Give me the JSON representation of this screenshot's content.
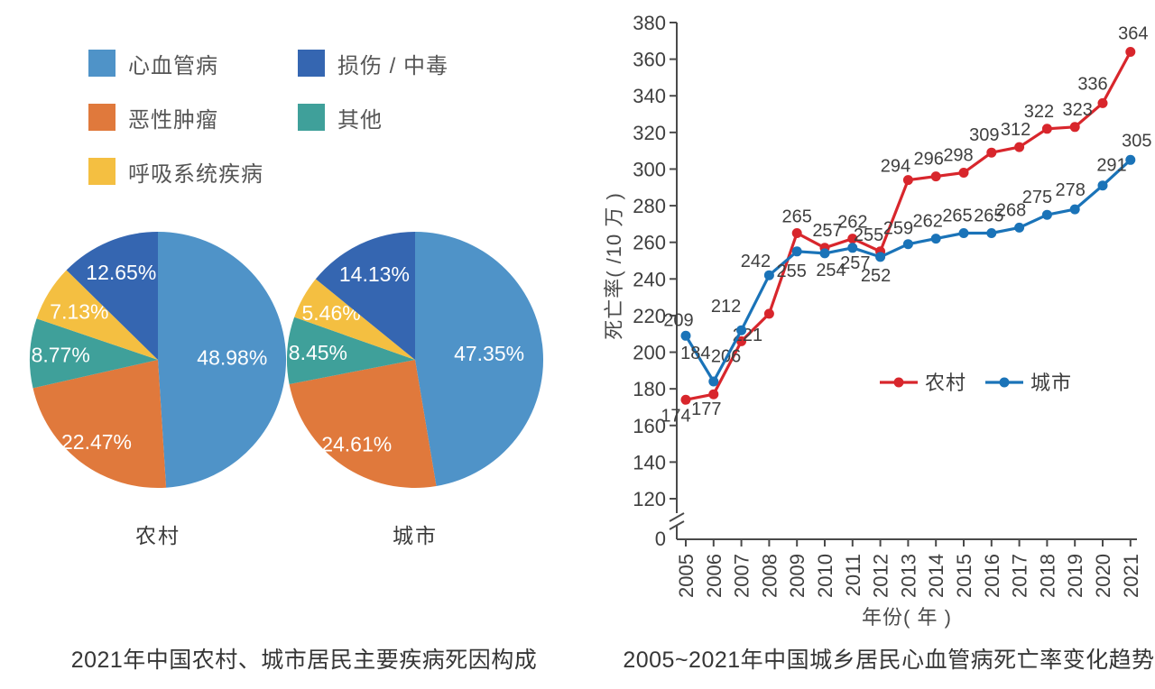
{
  "chart_data": [
    {
      "type": "pie",
      "title": "2021年中国农村、城市居民主要疾病死因构成",
      "categories": [
        {
          "name": "心血管病",
          "color": "#4f93c8"
        },
        {
          "name": "恶性肿瘤",
          "color": "#e0793c"
        },
        {
          "name": "其他",
          "color": "#3fa09a"
        },
        {
          "name": "呼吸系统疾病",
          "color": "#f4bf41"
        },
        {
          "name": "损伤 / 中毒",
          "color": "#3566b1"
        }
      ],
      "legend_columns": [
        [
          "心血管病",
          "恶性肿瘤",
          "呼吸系统疾病"
        ],
        [
          "损伤 / 中毒",
          "其他"
        ]
      ],
      "pies": [
        {
          "label": "农村",
          "values": [
            48.98,
            22.47,
            8.77,
            7.13,
            12.65
          ],
          "pct_labels": [
            "48.98%",
            "22.47%",
            "8.77%",
            "7.13%",
            "12.65%"
          ],
          "label_radius": [
            0.58,
            0.8,
            0.76,
            0.72,
            0.74
          ]
        },
        {
          "label": "城市",
          "values": [
            47.35,
            24.61,
            8.45,
            5.46,
            14.13
          ],
          "pct_labels": [
            "47.35%",
            "24.61%",
            "8.45%",
            "5.46%",
            "14.13%"
          ],
          "label_radius": [
            0.58,
            0.8,
            0.76,
            0.75,
            0.74
          ]
        }
      ]
    },
    {
      "type": "line",
      "title": "2005~2021年中国城乡居民心血管病死亡率变化趋势",
      "xlabel": "年份( 年 )",
      "ylabel": "死亡率( /10 万 )",
      "x": [
        2005,
        2006,
        2007,
        2008,
        2009,
        2010,
        2011,
        2012,
        2013,
        2014,
        2015,
        2016,
        2017,
        2018,
        2019,
        2020,
        2021
      ],
      "yticks": [
        120,
        140,
        160,
        180,
        200,
        220,
        240,
        260,
        280,
        300,
        320,
        340,
        360,
        380
      ],
      "y_origin_label": "0",
      "axis_break": true,
      "ylim": [
        120,
        380
      ],
      "grid": false,
      "legend_position": "inside-middle-right",
      "series": [
        {
          "name": "农村",
          "color": "#d8262c",
          "values": [
            174,
            177,
            206,
            221,
            265,
            257,
            262,
            255,
            294,
            296,
            298,
            309,
            312,
            322,
            323,
            336,
            364
          ],
          "label_offsets": [
            [
              -11,
              24
            ],
            [
              -8,
              23
            ],
            [
              -17,
              23
            ],
            [
              -24,
              30
            ],
            [
              0,
              -12
            ],
            [
              3,
              -13
            ],
            [
              0,
              -12
            ],
            [
              -13,
              -12
            ],
            [
              -14,
              -9
            ],
            [
              -8,
              -13
            ],
            [
              -6,
              -13
            ],
            [
              -8,
              -13
            ],
            [
              -4,
              -13
            ],
            [
              -9,
              -13
            ],
            [
              3,
              -13
            ],
            [
              -11,
              -15
            ],
            [
              3,
              -14
            ]
          ]
        },
        {
          "name": "城市",
          "color": "#1a73b8",
          "values": [
            209,
            184,
            212,
            242,
            255,
            254,
            257,
            252,
            259,
            262,
            265,
            265,
            268,
            275,
            278,
            291,
            305
          ],
          "label_offsets": [
            [
              -8,
              -11
            ],
            [
              -20,
              -25
            ],
            [
              -17,
              -20
            ],
            [
              -15,
              -9
            ],
            [
              -6,
              28
            ],
            [
              7,
              25
            ],
            [
              3,
              23
            ],
            [
              -5,
              27
            ],
            [
              -11,
              -11
            ],
            [
              -9,
              -13
            ],
            [
              -7,
              -13
            ],
            [
              -3,
              -13
            ],
            [
              -9,
              -13
            ],
            [
              -11,
              -13
            ],
            [
              -5,
              -15
            ],
            [
              10,
              -16
            ],
            [
              7,
              -15
            ]
          ]
        }
      ]
    }
  ]
}
